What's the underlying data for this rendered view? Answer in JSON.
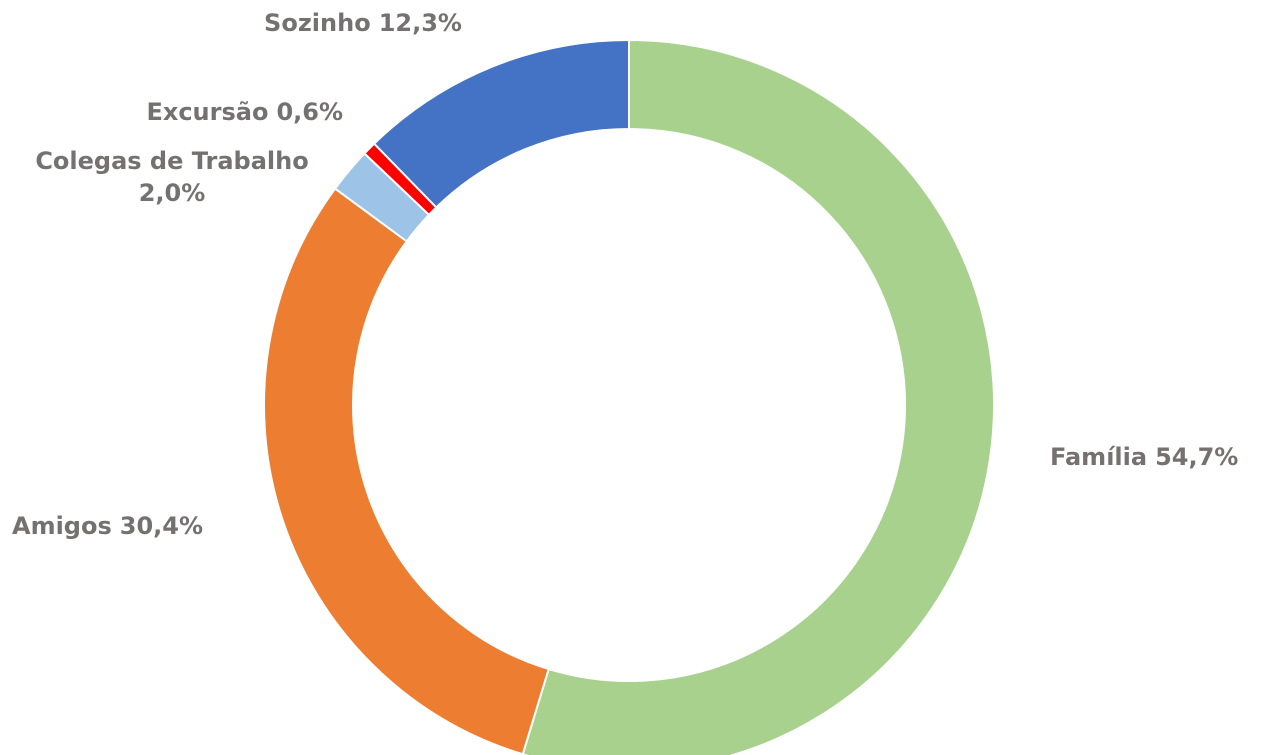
{
  "chart_data": {
    "type": "donut",
    "categories": [
      "Família",
      "Amigos",
      "Colegas de Trabalho",
      "Excursão",
      "Sozinho"
    ],
    "values": [
      54.7,
      30.4,
      2.0,
      0.6,
      12.3
    ],
    "value_labels": [
      "54,7%",
      "30,4%",
      "2,0%",
      "0,6%",
      "12,3%"
    ],
    "colors": [
      "#a9d18e",
      "#ed7d31",
      "#9dc3e6",
      "#ff0000",
      "#4472c4"
    ]
  }
}
